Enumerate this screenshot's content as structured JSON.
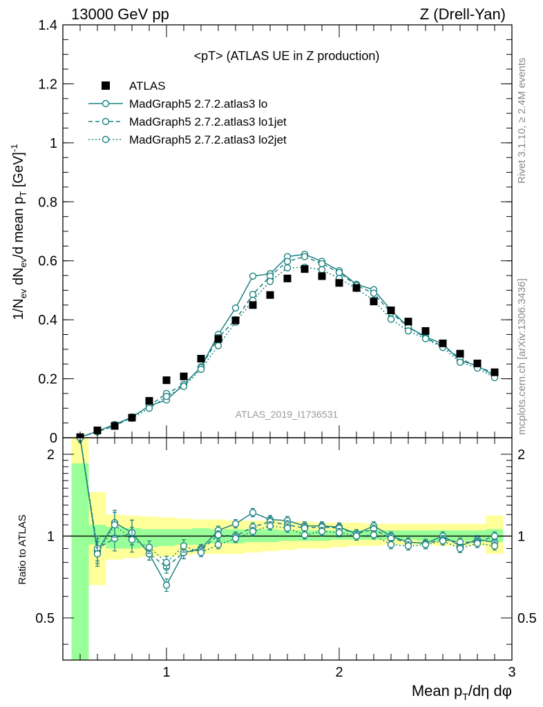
{
  "header": {
    "left": "13000 GeV pp",
    "right": "Z (Drell-Yan)",
    "rivet": "Rivet 3.1.10, ≥ 2.4M events",
    "mcplots": "mcplots.cern.ch [arXiv:1306.3436]",
    "analysis": "ATLAS_2019_I1736531"
  },
  "chart_data": [
    {
      "type": "scatter",
      "title": "<pT> (ATLAS UE in Z production)",
      "ylabel": "1/N_ev dN_ev/d mean p_T [GeV]^-1",
      "xlim": [
        0.4,
        3.0
      ],
      "ylim": [
        0,
        1.4
      ],
      "x_ticks": [
        "1",
        "2",
        "3"
      ],
      "y_ticks": [
        "0",
        "0.2",
        "0.4",
        "0.6",
        "0.8",
        "1",
        "1.2",
        "1.4"
      ],
      "x": [
        0.5,
        0.6,
        0.7,
        0.8,
        0.9,
        1.0,
        1.1,
        1.2,
        1.3,
        1.4,
        1.5,
        1.6,
        1.7,
        1.8,
        1.9,
        2.0,
        2.1,
        2.2,
        2.3,
        2.4,
        2.5,
        2.6,
        2.7,
        2.8,
        2.9
      ],
      "legend_position": "top-left",
      "series": [
        {
          "name": "ATLAS",
          "color": "#000000",
          "marker": "square",
          "values": [
            0.002,
            0.025,
            0.04,
            0.068,
            0.125,
            0.195,
            0.208,
            0.268,
            0.335,
            0.398,
            0.45,
            0.484,
            0.54,
            0.572,
            0.548,
            0.525,
            0.508,
            0.462,
            0.432,
            0.394,
            0.362,
            0.32,
            0.285,
            0.252,
            0.222
          ]
        },
        {
          "name": "MadGraph5 2.7.2.atlas3 lo",
          "color": "#1a8080",
          "dash": "solid",
          "values": [
            0.002,
            0.022,
            0.045,
            0.07,
            0.108,
            0.128,
            0.18,
            0.24,
            0.35,
            0.44,
            0.548,
            0.556,
            0.614,
            0.622,
            0.598,
            0.566,
            0.52,
            0.502,
            0.432,
            0.376,
            0.342,
            0.318,
            0.262,
            0.244,
            0.21
          ]
        },
        {
          "name": "MadGraph5 2.7.2.atlas3 lo1jet",
          "color": "#1a8080",
          "dash": "dashed",
          "values": [
            0.002,
            0.02,
            0.04,
            0.07,
            0.108,
            0.15,
            0.18,
            0.238,
            0.34,
            0.4,
            0.486,
            0.548,
            0.598,
            0.614,
            0.59,
            0.56,
            0.516,
            0.49,
            0.424,
            0.376,
            0.338,
            0.31,
            0.27,
            0.24,
            0.22
          ]
        },
        {
          "name": "MadGraph5 2.7.2.atlas3 lo2jet",
          "color": "#1a8080",
          "dash": "dotted",
          "values": [
            0.002,
            0.022,
            0.044,
            0.066,
            0.1,
            0.14,
            0.174,
            0.232,
            0.312,
            0.392,
            0.466,
            0.53,
            0.576,
            0.578,
            0.57,
            0.54,
            0.506,
            0.466,
            0.402,
            0.362,
            0.336,
            0.306,
            0.256,
            0.236,
            0.204
          ]
        }
      ]
    },
    {
      "type": "line",
      "ylabel": "Ratio to ATLAS",
      "xlabel": "Mean p_T/dη dφ",
      "xlim": [
        0.4,
        3.0
      ],
      "ylim": [
        0.35,
        2.3
      ],
      "log_y": true,
      "x_ticks": [
        "1",
        "2",
        "3"
      ],
      "y_ticks": [
        "0.5",
        "1",
        "2"
      ],
      "reference_line": 1.0,
      "bands": {
        "edges": [
          0.45,
          0.55,
          0.65,
          0.75,
          0.85,
          0.95,
          1.05,
          1.15,
          1.25,
          1.35,
          1.45,
          1.55,
          1.65,
          1.75,
          1.85,
          1.95,
          2.05,
          2.15,
          2.25,
          2.35,
          2.45,
          2.55,
          2.65,
          2.75,
          2.85,
          2.95
        ],
        "green_low": [
          0.3,
          0.93,
          0.9,
          0.9,
          0.91,
          0.92,
          0.93,
          0.93,
          0.94,
          0.94,
          0.95,
          0.95,
          0.96,
          0.96,
          0.96,
          0.97,
          0.97,
          0.97,
          0.97,
          0.97,
          0.96,
          0.96,
          0.96,
          0.96,
          0.95
        ],
        "green_high": [
          1.85,
          1.1,
          1.08,
          1.07,
          1.06,
          1.06,
          1.06,
          1.07,
          1.06,
          1.06,
          1.06,
          1.06,
          1.05,
          1.05,
          1.05,
          1.05,
          1.05,
          1.05,
          1.05,
          1.05,
          1.05,
          1.05,
          1.05,
          1.05,
          1.06
        ],
        "yellow_low": [
          0.3,
          0.66,
          0.82,
          0.83,
          0.84,
          0.84,
          0.85,
          0.86,
          0.86,
          0.86,
          0.87,
          0.88,
          0.89,
          0.9,
          0.9,
          0.91,
          0.92,
          0.92,
          0.93,
          0.93,
          0.93,
          0.92,
          0.92,
          0.92,
          0.86
        ],
        "yellow_high": [
          2.3,
          1.45,
          1.2,
          1.19,
          1.18,
          1.17,
          1.16,
          1.15,
          1.15,
          1.14,
          1.14,
          1.14,
          1.13,
          1.13,
          1.12,
          1.12,
          1.12,
          1.11,
          1.11,
          1.11,
          1.11,
          1.11,
          1.11,
          1.11,
          1.19
        ]
      },
      "x": [
        0.5,
        0.6,
        0.7,
        0.8,
        0.9,
        1.0,
        1.1,
        1.2,
        1.3,
        1.4,
        1.5,
        1.6,
        1.7,
        1.8,
        1.9,
        2.0,
        2.1,
        2.2,
        2.3,
        2.4,
        2.5,
        2.6,
        2.7,
        2.8,
        2.9
      ],
      "series": [
        {
          "name": "MadGraph5 2.7.2.atlas3 lo",
          "color": "#1a8080",
          "dash": "solid",
          "values": [
            2.3,
            0.88,
            1.12,
            1.03,
            0.86,
            0.66,
            0.87,
            0.9,
            1.05,
            1.11,
            1.22,
            1.15,
            1.14,
            1.09,
            1.09,
            1.08,
            1.02,
            1.09,
            1.0,
            0.95,
            0.94,
            1.0,
            0.92,
            0.97,
            0.95
          ]
        },
        {
          "name": "MadGraph5 2.7.2.atlas3 lo1jet",
          "color": "#1a8080",
          "dash": "dashed",
          "values": [
            2.3,
            0.9,
            0.98,
            1.03,
            0.86,
            0.77,
            0.87,
            0.89,
            1.01,
            1.0,
            1.08,
            1.13,
            1.1,
            1.07,
            1.08,
            1.07,
            1.02,
            1.06,
            0.98,
            0.95,
            0.94,
            0.97,
            0.95,
            0.95,
            1.0
          ]
        },
        {
          "name": "MadGraph5 2.7.2.atlas3 lo2jet",
          "color": "#1a8080",
          "dash": "dotted",
          "values": [
            2.3,
            0.86,
            1.1,
            0.97,
            0.91,
            0.8,
            0.92,
            0.87,
            0.93,
            0.98,
            1.04,
            1.09,
            1.07,
            1.01,
            1.04,
            1.03,
            1.0,
            1.01,
            0.93,
            0.92,
            0.93,
            0.96,
            0.9,
            0.94,
            0.92
          ]
        }
      ]
    }
  ]
}
